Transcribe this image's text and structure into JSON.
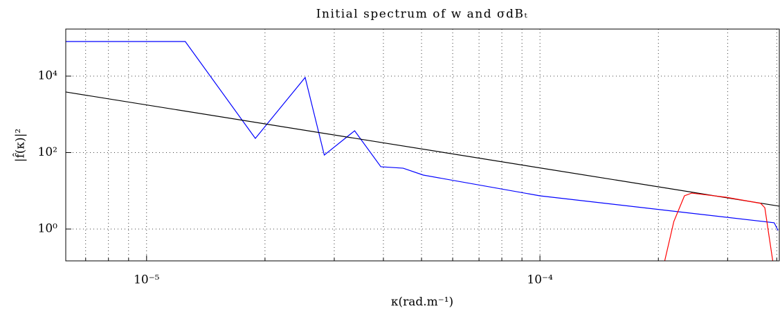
{
  "chart_data": {
    "type": "line",
    "title": "Initial spectrum of w and σdBₜ",
    "x_label": "κ(rad.m⁻¹)",
    "y_label": "|f̂(κ)|²",
    "log_x": true,
    "log_y": true,
    "grid": true,
    "xlim": [
      6.23e-06,
      0.000406
    ],
    "ylim": [
      0.147,
      170000
    ],
    "xticks": [
      {
        "value": 1e-05,
        "label": "10⁻⁵"
      },
      {
        "value": 0.0001,
        "label": "10⁻⁴"
      }
    ],
    "xminorticks": [
      7e-06,
      8e-06,
      9e-06,
      2e-05,
      3e-05,
      4e-05,
      5e-05,
      6e-05,
      7e-05,
      8e-05,
      9e-05,
      0.0002,
      0.0003,
      0.0004
    ],
    "yticks": [
      {
        "value": 1,
        "label": "10⁰"
      },
      {
        "value": 100,
        "label": "10²"
      },
      {
        "value": 10000,
        "label": "10⁴"
      }
    ],
    "series": [
      {
        "color": "#0000ff",
        "x": [
          6.23e-06,
          1.254e-05,
          1.89e-05,
          2.53e-05,
          2.83e-05,
          3.38e-05,
          3.94e-05,
          4.49e-05,
          5.05e-05,
          0.0001,
          0.000394,
          0.000403
        ],
        "values": [
          80300,
          80300,
          235,
          9200,
          86,
          372,
          42.6,
          39,
          25.8,
          7.4,
          1.46,
          0.92
        ]
      },
      {
        "color": "#000000",
        "x": [
          6.23e-06,
          0.000406
        ],
        "values": [
          3840,
          3.96
        ]
      },
      {
        "color": "#ff0000",
        "x": [
          0.000207,
          0.000219,
          0.000233,
          0.000243,
          0.000297,
          0.000364,
          0.000373,
          0.000382,
          0.000391
        ],
        "values": [
          0.13,
          1.58,
          7.4,
          8.7,
          6.8,
          4.7,
          3.6,
          0.69,
          0.14
        ]
      }
    ]
  }
}
